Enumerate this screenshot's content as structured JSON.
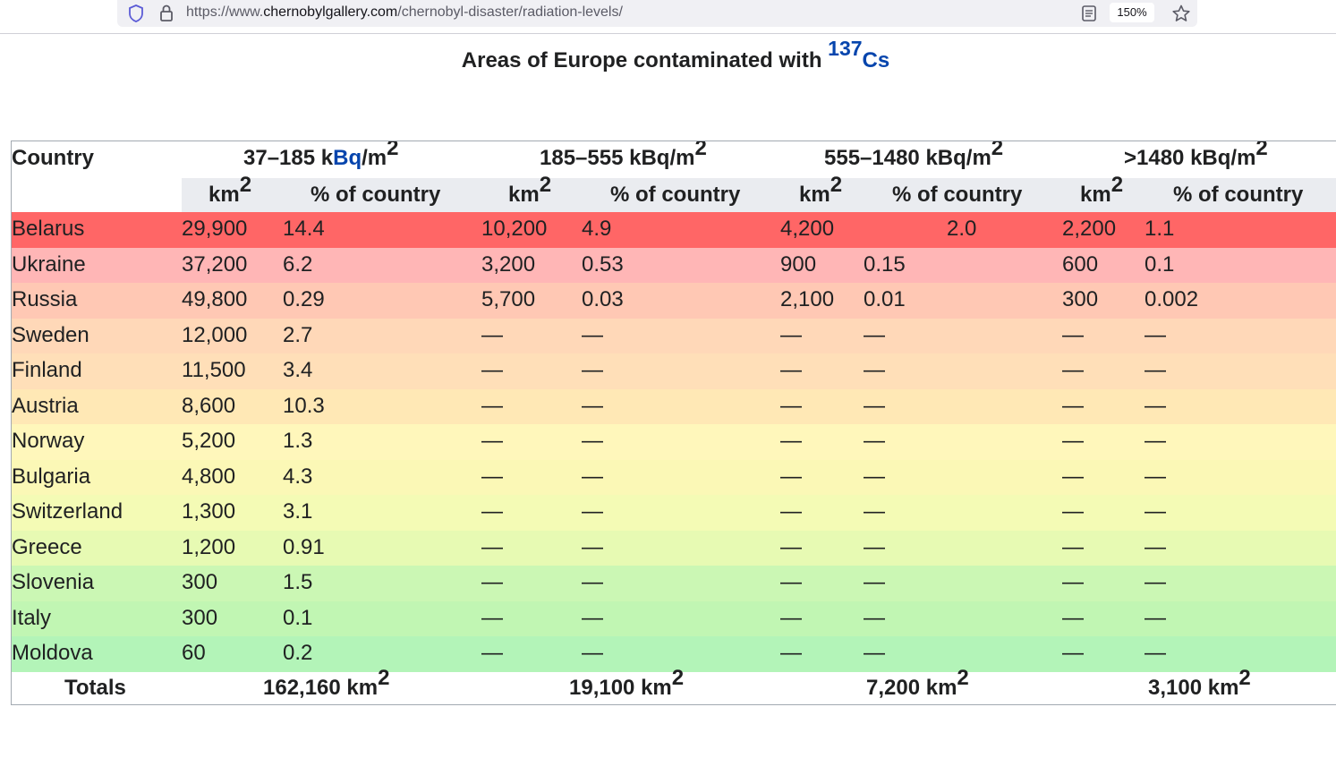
{
  "browser": {
    "url_domain": "chernobylgallery.com",
    "url_prefix": "https://www.",
    "url_path": "/chernobyl-disaster/radiation-levels/",
    "zoom": "150%"
  },
  "caption": {
    "text": "Areas of Europe contaminated with",
    "isotope_mass": "137",
    "isotope_symbol": "Cs"
  },
  "table": {
    "country_header": "Country",
    "band_headers": [
      {
        "prefix": "37–185 k",
        "link": "Bq",
        "suffix": "/m",
        "exp": "2"
      },
      {
        "prefix": "185–555 kBq/m",
        "link": "",
        "suffix": "",
        "exp": "2"
      },
      {
        "prefix": "555–1480 kBq/m",
        "link": "",
        "suffix": "",
        "exp": "2"
      },
      {
        "prefix": ">1480 kBq/m",
        "link": "",
        "suffix": "",
        "exp": "2"
      }
    ],
    "sub_headers": {
      "km": "km",
      "km_exp": "2",
      "pct": "% of country"
    },
    "rows": [
      {
        "country": "Belarus",
        "bg": "#ff6666",
        "v": [
          "29,900",
          "14.4",
          "10,200",
          "4.9",
          "4,200",
          "2.0",
          "2,200",
          "1.1"
        ]
      },
      {
        "country": "Ukraine",
        "bg": "#ffb6b6",
        "v": [
          "37,200",
          "6.2",
          "3,200",
          "0.53",
          "900",
          "0.15",
          "600",
          "0.1"
        ]
      },
      {
        "country": "Russia",
        "bg": "#ffc8b4",
        "v": [
          "49,800",
          "0.29",
          "5,700",
          "0.03",
          "2,100",
          "0.01",
          "300",
          "0.002"
        ]
      },
      {
        "country": "Sweden",
        "bg": "#ffd8b8",
        "v": [
          "12,000",
          "2.7",
          "—",
          "—",
          "—",
          "—",
          "—",
          "—"
        ]
      },
      {
        "country": "Finland",
        "bg": "#ffdfb8",
        "v": [
          "11,500",
          "3.4",
          "—",
          "—",
          "—",
          "—",
          "—",
          "—"
        ]
      },
      {
        "country": "Austria",
        "bg": "#ffe8b5",
        "v": [
          "8,600",
          "10.3",
          "—",
          "—",
          "—",
          "—",
          "—",
          "—"
        ]
      },
      {
        "country": "Norway",
        "bg": "#fff7bb",
        "v": [
          "5,200",
          "1.3",
          "—",
          "—",
          "—",
          "—",
          "—",
          "—"
        ]
      },
      {
        "country": "Bulgaria",
        "bg": "#fbf8b6",
        "v": [
          "4,800",
          "4.3",
          "—",
          "—",
          "—",
          "—",
          "—",
          "—"
        ]
      },
      {
        "country": "Switzerland",
        "bg": "#f4fbb5",
        "v": [
          "1,300",
          "3.1",
          "—",
          "—",
          "—",
          "—",
          "—",
          "—"
        ]
      },
      {
        "country": "Greece",
        "bg": "#e7fab3",
        "v": [
          "1,200",
          "0.91",
          "—",
          "—",
          "—",
          "—",
          "—",
          "—"
        ]
      },
      {
        "country": "Slovenia",
        "bg": "#cbf7b4",
        "v": [
          "300",
          "1.5",
          "—",
          "—",
          "—",
          "—",
          "—",
          "—"
        ]
      },
      {
        "country": "Italy",
        "bg": "#c1f6b3",
        "v": [
          "300",
          "0.1",
          "—",
          "—",
          "—",
          "—",
          "—",
          "—"
        ]
      },
      {
        "country": "Moldova",
        "bg": "#b3f4b8",
        "v": [
          "60",
          "0.2",
          "—",
          "—",
          "—",
          "—",
          "—",
          "—"
        ]
      }
    ],
    "totals_label": "Totals",
    "totals": [
      {
        "value": "162,160 km",
        "exp": "2"
      },
      {
        "value": "19,100 km",
        "exp": "2"
      },
      {
        "value": "7,200 km",
        "exp": "2"
      },
      {
        "value": "3,100 km",
        "exp": "2"
      }
    ]
  }
}
